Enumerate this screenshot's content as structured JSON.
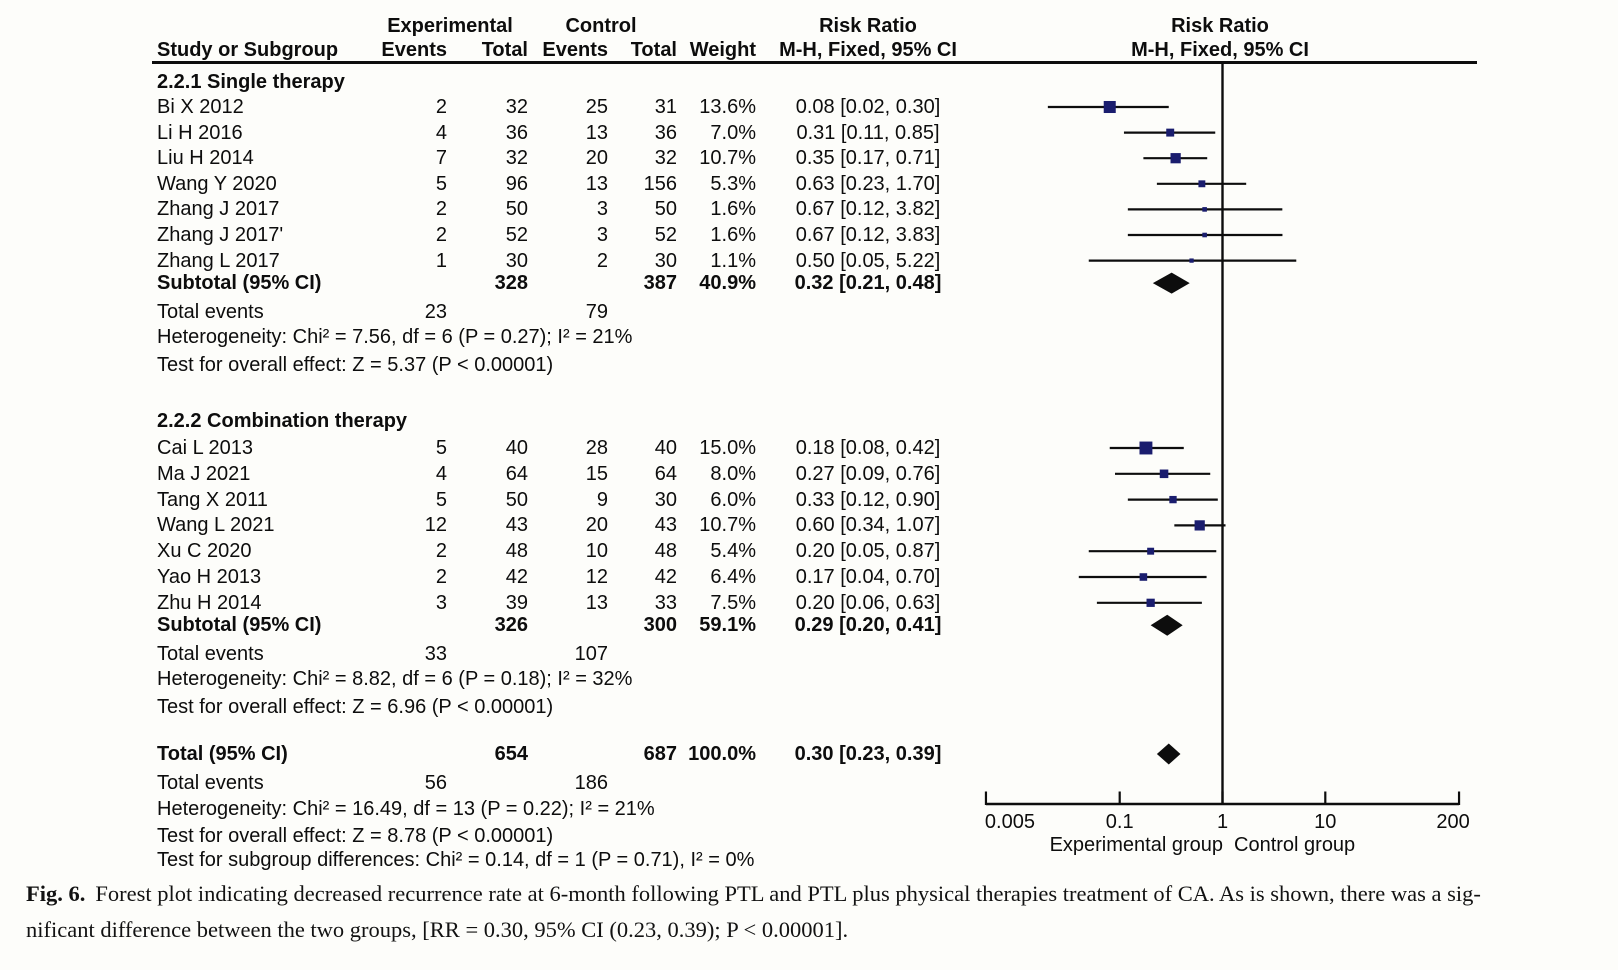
{
  "page": {
    "background": "#fdfdfa",
    "text_color": "#0d0d0d",
    "marker_color": "#1a1d6e",
    "line_color": "#0d0d0d"
  },
  "table_header": {
    "experimental": "Experimental",
    "control": "Control",
    "risk_ratio_left": "Risk Ratio",
    "risk_ratio_right": "Risk Ratio",
    "study_or_subgroup": "Study or Subgroup",
    "events_exp": "Events",
    "total_exp": "Total",
    "events_ctl": "Events",
    "total_ctl": "Total",
    "weight": "Weight",
    "mh_fixed_left": "M-H, Fixed, 95% CI",
    "mh_fixed_right": "M-H, Fixed, 95% CI"
  },
  "chart_data": {
    "type": "forest_plot",
    "effect_measure": "Risk Ratio",
    "method": "M-H, Fixed, 95% CI",
    "x_scale": "log",
    "x_tick_labels": [
      "0.005",
      "0.1",
      "1",
      "10",
      "200"
    ],
    "x_tick_values": [
      0.005,
      0.1,
      1,
      10,
      200
    ],
    "x_range": [
      0.005,
      200
    ],
    "null_line": 1,
    "axis_left_label": "Experimental group",
    "axis_right_label": "Control group",
    "subgroups": [
      {
        "label": "2.2.1 Single therapy",
        "studies": [
          {
            "name": "Bi X 2012",
            "exp_events": "2",
            "exp_total": "32",
            "ctl_events": "25",
            "ctl_total": "31",
            "weight": "13.6%",
            "weight_pct": 13.6,
            "rr": 0.08,
            "ci_low": 0.02,
            "ci_high": 0.3,
            "estimate_label": "0.08 [0.02, 0.30]"
          },
          {
            "name": "Li H 2016",
            "exp_events": "4",
            "exp_total": "36",
            "ctl_events": "13",
            "ctl_total": "36",
            "weight": "7.0%",
            "weight_pct": 7.0,
            "rr": 0.31,
            "ci_low": 0.11,
            "ci_high": 0.85,
            "estimate_label": "0.31 [0.11, 0.85]"
          },
          {
            "name": "Liu H 2014",
            "exp_events": "7",
            "exp_total": "32",
            "ctl_events": "20",
            "ctl_total": "32",
            "weight": "10.7%",
            "weight_pct": 10.7,
            "rr": 0.35,
            "ci_low": 0.17,
            "ci_high": 0.71,
            "estimate_label": "0.35 [0.17, 0.71]"
          },
          {
            "name": "Wang Y 2020",
            "exp_events": "5",
            "exp_total": "96",
            "ctl_events": "13",
            "ctl_total": "156",
            "weight": "5.3%",
            "weight_pct": 5.3,
            "rr": 0.63,
            "ci_low": 0.23,
            "ci_high": 1.7,
            "estimate_label": "0.63 [0.23, 1.70]"
          },
          {
            "name": "Zhang J 2017",
            "exp_events": "2",
            "exp_total": "50",
            "ctl_events": "3",
            "ctl_total": "50",
            "weight": "1.6%",
            "weight_pct": 1.6,
            "rr": 0.67,
            "ci_low": 0.12,
            "ci_high": 3.82,
            "estimate_label": "0.67 [0.12, 3.82]"
          },
          {
            "name": "Zhang J 2017'",
            "exp_events": "2",
            "exp_total": "52",
            "ctl_events": "3",
            "ctl_total": "52",
            "weight": "1.6%",
            "weight_pct": 1.6,
            "rr": 0.67,
            "ci_low": 0.12,
            "ci_high": 3.83,
            "estimate_label": "0.67 [0.12, 3.83]"
          },
          {
            "name": "Zhang L 2017",
            "exp_events": "1",
            "exp_total": "30",
            "ctl_events": "2",
            "ctl_total": "30",
            "weight": "1.1%",
            "weight_pct": 1.1,
            "rr": 0.5,
            "ci_low": 0.05,
            "ci_high": 5.22,
            "estimate_label": "0.50 [0.05, 5.22]"
          }
        ],
        "subtotal": {
          "label": "Subtotal (95% CI)",
          "exp_total": "328",
          "ctl_total": "387",
          "weight": "40.9%",
          "rr": 0.32,
          "ci_low": 0.21,
          "ci_high": 0.48,
          "estimate_label": "0.32 [0.21, 0.48]"
        },
        "total_events": {
          "label": "Total events",
          "exp": "23",
          "ctl": "79"
        },
        "heterogeneity": "Heterogeneity: Chi² = 7.56, df = 6 (P = 0.27); I² = 21%",
        "overall_effect": "Test for overall effect: Z = 5.37 (P < 0.00001)"
      },
      {
        "label": "2.2.2 Combination therapy",
        "studies": [
          {
            "name": "Cai L 2013",
            "exp_events": "5",
            "exp_total": "40",
            "ctl_events": "28",
            "ctl_total": "40",
            "weight": "15.0%",
            "weight_pct": 15.0,
            "rr": 0.18,
            "ci_low": 0.08,
            "ci_high": 0.42,
            "estimate_label": "0.18 [0.08, 0.42]"
          },
          {
            "name": "Ma J 2021",
            "exp_events": "4",
            "exp_total": "64",
            "ctl_events": "15",
            "ctl_total": "64",
            "weight": "8.0%",
            "weight_pct": 8.0,
            "rr": 0.27,
            "ci_low": 0.09,
            "ci_high": 0.76,
            "estimate_label": "0.27 [0.09, 0.76]"
          },
          {
            "name": "Tang X 2011",
            "exp_events": "5",
            "exp_total": "50",
            "ctl_events": "9",
            "ctl_total": "30",
            "weight": "6.0%",
            "weight_pct": 6.0,
            "rr": 0.33,
            "ci_low": 0.12,
            "ci_high": 0.9,
            "estimate_label": "0.33 [0.12, 0.90]"
          },
          {
            "name": "Wang L 2021",
            "exp_events": "12",
            "exp_total": "43",
            "ctl_events": "20",
            "ctl_total": "43",
            "weight": "10.7%",
            "weight_pct": 10.7,
            "rr": 0.6,
            "ci_low": 0.34,
            "ci_high": 1.07,
            "estimate_label": "0.60 [0.34, 1.07]"
          },
          {
            "name": "Xu C 2020",
            "exp_events": "2",
            "exp_total": "48",
            "ctl_events": "10",
            "ctl_total": "48",
            "weight": "5.4%",
            "weight_pct": 5.4,
            "rr": 0.2,
            "ci_low": 0.05,
            "ci_high": 0.87,
            "estimate_label": "0.20 [0.05, 0.87]"
          },
          {
            "name": "Yao H 2013",
            "exp_events": "2",
            "exp_total": "42",
            "ctl_events": "12",
            "ctl_total": "42",
            "weight": "6.4%",
            "weight_pct": 6.4,
            "rr": 0.17,
            "ci_low": 0.04,
            "ci_high": 0.7,
            "estimate_label": "0.17 [0.04, 0.70]"
          },
          {
            "name": "Zhu H 2014",
            "exp_events": "3",
            "exp_total": "39",
            "ctl_events": "13",
            "ctl_total": "33",
            "weight": "7.5%",
            "weight_pct": 7.5,
            "rr": 0.2,
            "ci_low": 0.06,
            "ci_high": 0.63,
            "estimate_label": "0.20 [0.06, 0.63]"
          }
        ],
        "subtotal": {
          "label": "Subtotal (95% CI)",
          "exp_total": "326",
          "ctl_total": "300",
          "weight": "59.1%",
          "rr": 0.29,
          "ci_low": 0.2,
          "ci_high": 0.41,
          "estimate_label": "0.29 [0.20, 0.41]"
        },
        "total_events": {
          "label": "Total events",
          "exp": "33",
          "ctl": "107"
        },
        "heterogeneity": "Heterogeneity: Chi² = 8.82, df = 6 (P = 0.18); I² = 32%",
        "overall_effect": "Test for overall effect: Z = 6.96 (P < 0.00001)"
      }
    ],
    "total": {
      "row": {
        "label": "Total (95% CI)",
        "exp_total": "654",
        "ctl_total": "687",
        "weight": "100.0%",
        "rr": 0.3,
        "ci_low": 0.23,
        "ci_high": 0.39,
        "estimate_label": "0.30 [0.23, 0.39]"
      },
      "total_events": {
        "label": "Total events",
        "exp": "56",
        "ctl": "186"
      },
      "heterogeneity": "Heterogeneity: Chi² = 16.49, df = 13 (P = 0.22); I² = 21%",
      "overall_effect": "Test for overall effect: Z = 8.78 (P < 0.00001)",
      "subgroup_differences": "Test for subgroup differences: Chi² = 0.14, df = 1 (P = 0.71), I² = 0%"
    }
  },
  "caption": {
    "tag": "Fig. 6.",
    "line1_rest": "Forest plot indicating decreased recurrence rate at 6-month following PTL and PTL plus physical therapies treatment of CA. As is shown, there was a sig-",
    "line2": "nificant difference between the two groups, [RR = 0.30, 95% CI (0.23, 0.39); P < 0.00001]."
  }
}
